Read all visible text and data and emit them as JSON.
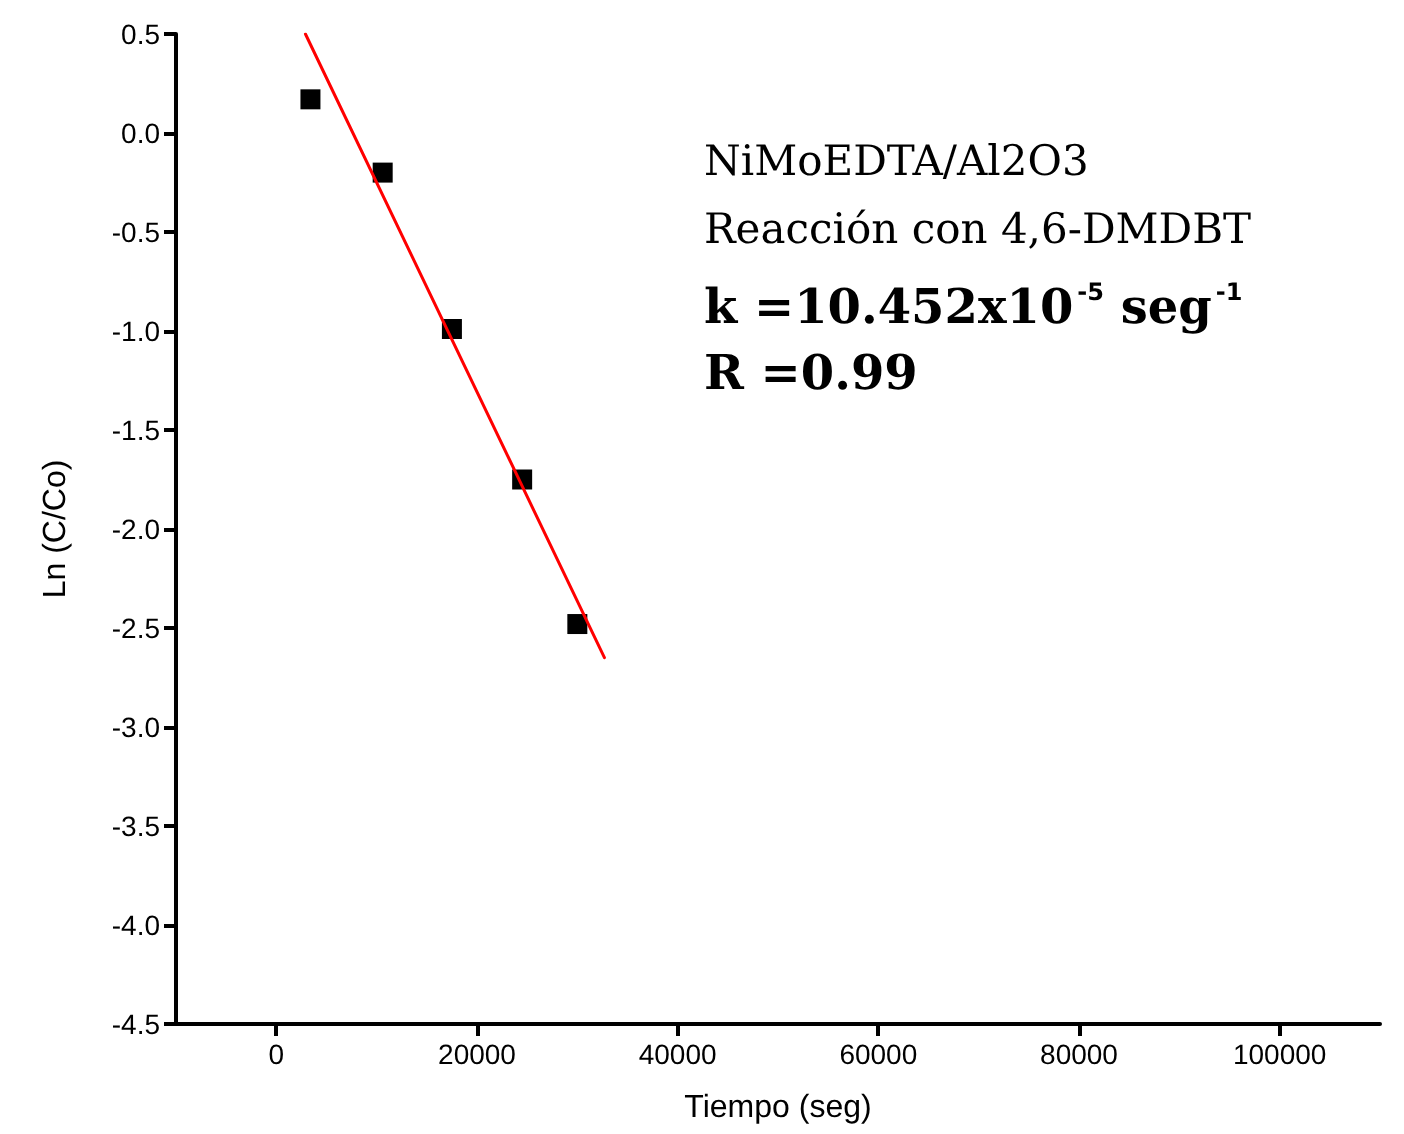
{
  "chart_data": {
    "type": "scatter",
    "xlabel": "Tiempo (seg)",
    "ylabel": "Ln (C/Co)",
    "xlim": [
      -10000,
      110000
    ],
    "xticks": [
      0,
      20000,
      40000,
      60000,
      80000,
      100000
    ],
    "ylim": [
      -4.5,
      0.5
    ],
    "yticks": [
      {
        "value": -4.5,
        "label": "-4.5"
      },
      {
        "value": -4,
        "label": "-4.0"
      },
      {
        "value": -3.5,
        "label": "-3.5"
      },
      {
        "value": -3,
        "label": "-3.0"
      },
      {
        "value": -2.5,
        "label": "-2.5"
      },
      {
        "value": -2,
        "label": "-2.0"
      },
      {
        "value": -1.5,
        "label": "-1.5"
      },
      {
        "value": -1,
        "label": "-1.0"
      },
      {
        "value": -0.5,
        "label": "-0.5"
      },
      {
        "value": 0,
        "label": "0.0"
      },
      {
        "value": 0.5,
        "label": "0.5"
      }
    ],
    "x": [
      3400,
      10600,
      17500,
      24500,
      30000
    ],
    "series": [
      {
        "color": "#000000",
        "marker": "square",
        "values": [
          0.17,
          -0.2,
          -0.99,
          -1.75,
          -2.48
        ]
      },
      {
        "type": "line",
        "color": "#ff0000",
        "marker": "none",
        "line_style": "solid",
        "x": [
          2900,
          32700
        ],
        "values": [
          0.5,
          -2.65
        ]
      }
    ],
    "annotations": [
      "NiMoEDTA/Al2O3",
      "Reacción con 4,6-DMDBT",
      "k =10.452x10$^{-5}$ seg$^{-1}$",
      "R =0.99"
    ],
    "grid": false
  }
}
